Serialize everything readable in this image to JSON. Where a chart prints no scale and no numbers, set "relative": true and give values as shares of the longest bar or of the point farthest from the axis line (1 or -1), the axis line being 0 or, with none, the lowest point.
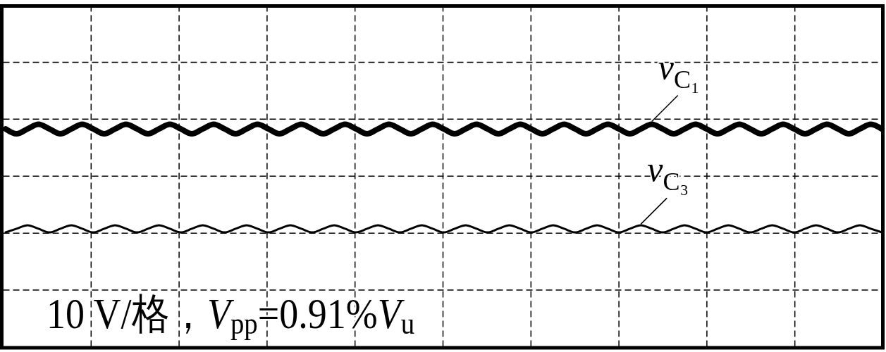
{
  "chart_data": {
    "type": "line",
    "relative": true,
    "grid": true,
    "categories": [
      null,
      null,
      null,
      null,
      null,
      null,
      null,
      null,
      null,
      null,
      null,
      null,
      null,
      null,
      null,
      null,
      null,
      null,
      null,
      null,
      null,
      null,
      null,
      null,
      null,
      null,
      null,
      null,
      null,
      null,
      null,
      null,
      null,
      null,
      null,
      null,
      null,
      null,
      null,
      null,
      null,
      null,
      null,
      null,
      null,
      null,
      null,
      null,
      null,
      null,
      null,
      null,
      null,
      null,
      null,
      null,
      null,
      null,
      null,
      null,
      null,
      null,
      null,
      null,
      null,
      null,
      null,
      null,
      null,
      null,
      null,
      null,
      null,
      null,
      null,
      null,
      null,
      null,
      null,
      null,
      null
    ],
    "series": [
      {
        "name": "v$_{C₁}$",
        "color": "#000000",
        "values": [
          0.979,
          0.957,
          0.979,
          1,
          0.979,
          0.957,
          0.979,
          1,
          0.979,
          0.957,
          0.979,
          1,
          0.979,
          0.957,
          0.979,
          1,
          0.979,
          0.957,
          0.979,
          1,
          0.979,
          0.957,
          0.979,
          1,
          0.979,
          0.957,
          0.979,
          1,
          0.979,
          0.957,
          0.979,
          1,
          0.979,
          0.957,
          0.979,
          1,
          0.979,
          0.957,
          0.979,
          1,
          0.979,
          0.957,
          0.979,
          1,
          0.979,
          0.957,
          0.979,
          1,
          0.979,
          0.957,
          0.979,
          1,
          0.979,
          0.957,
          0.979,
          1,
          0.979,
          0.957,
          0.979,
          1,
          0.979,
          0.957,
          0.979,
          1,
          0.979,
          0.957,
          0.979,
          1,
          0.979,
          0.957,
          0.979,
          1,
          0.979,
          0.957,
          0.979,
          1,
          0.979,
          0.957,
          0.979,
          1,
          0.979
        ]
      },
      {
        "name": "v$_{C₃}$",
        "color": "#000000",
        "values": [
          0.515,
          0.531,
          0.547,
          0.531,
          0.515,
          0.531,
          0.547,
          0.531,
          0.515,
          0.531,
          0.547,
          0.531,
          0.515,
          0.531,
          0.547,
          0.531,
          0.515,
          0.531,
          0.547,
          0.531,
          0.515,
          0.531,
          0.547,
          0.531,
          0.515,
          0.531,
          0.547,
          0.531,
          0.515,
          0.531,
          0.547,
          0.531,
          0.515,
          0.531,
          0.547,
          0.531,
          0.515,
          0.531,
          0.547,
          0.531,
          0.515,
          0.531,
          0.547,
          0.531,
          0.515,
          0.531,
          0.547,
          0.531,
          0.515,
          0.531,
          0.547,
          0.531,
          0.515,
          0.531,
          0.547,
          0.531,
          0.515,
          0.531,
          0.547,
          0.531,
          0.515,
          0.531,
          0.547,
          0.531,
          0.515,
          0.531,
          0.547,
          0.531,
          0.515,
          0.531,
          0.547,
          0.531,
          0.515,
          0.531,
          0.547,
          0.531,
          0.515,
          0.531,
          0.547,
          0.531,
          0.515
        ]
      }
    ],
    "annotations": [
      "10 V/格，V$_{pp}$=0.91%V$_{u}$"
    ]
  }
}
